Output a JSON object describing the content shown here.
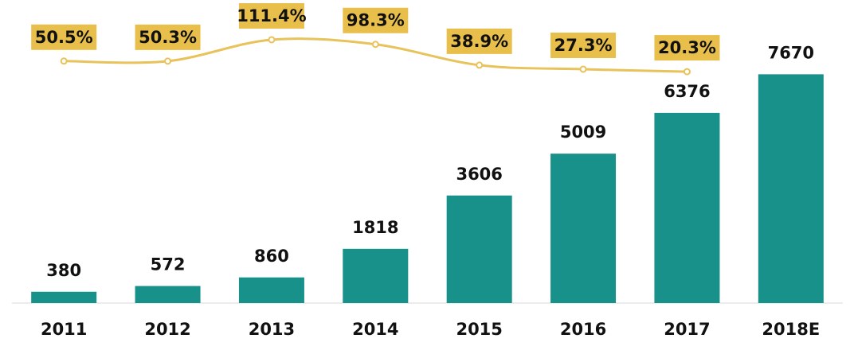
{
  "chart_data": {
    "type": "bar",
    "categories": [
      "2011",
      "2012",
      "2013",
      "2014",
      "2015",
      "2016",
      "2017",
      "2018E"
    ],
    "ylim": [
      0,
      8000
    ],
    "y2lim": [
      0,
      200
    ],
    "series": [
      {
        "type": "bar",
        "color": "#17918a",
        "values": [
          380,
          572,
          860,
          1818,
          3606,
          5009,
          6376,
          7670
        ]
      },
      {
        "type": "line",
        "axis": "y2",
        "color": "#e8c25a",
        "values": [
          50.5,
          50.3,
          111.4,
          98.3,
          38.9,
          27.3,
          20.3,
          null
        ],
        "value_labels": [
          "50.5%",
          "50.3%",
          "111.4%",
          "98.3%",
          "38.9%",
          "27.3%",
          "20.3%",
          null
        ]
      }
    ]
  }
}
